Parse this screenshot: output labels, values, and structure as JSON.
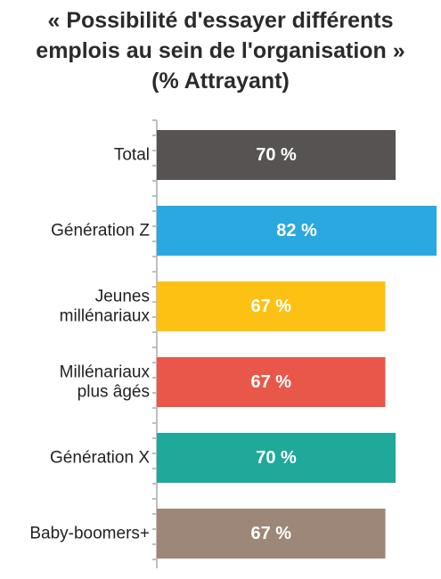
{
  "title_lines": [
    "« Possibilité d'essayer différents",
    "emplois au sein de l'organisation »",
    "(% Attrayant)"
  ],
  "chart_data": {
    "type": "bar",
    "orientation": "horizontal",
    "title": "« Possibilité d'essayer différents emplois au sein de l'organisation » (% Attrayant)",
    "categories": [
      [
        "Total"
      ],
      [
        "Génération Z"
      ],
      [
        "Jeunes",
        "millénariaux"
      ],
      [
        "Millénariaux",
        "plus âgés"
      ],
      [
        "Génération X"
      ],
      [
        "Baby-boomers+"
      ]
    ],
    "values": [
      70,
      82,
      67,
      67,
      70,
      67
    ],
    "value_labels": [
      "70 %",
      "82 %",
      "67 %",
      "67 %",
      "70 %",
      "67 %"
    ],
    "colors": [
      "#575352",
      "#2aa8e0",
      "#fdc113",
      "#e8574a",
      "#1ea99b",
      "#9c8778"
    ],
    "xlim": [
      0,
      82
    ],
    "grid": false,
    "legend": "none"
  }
}
